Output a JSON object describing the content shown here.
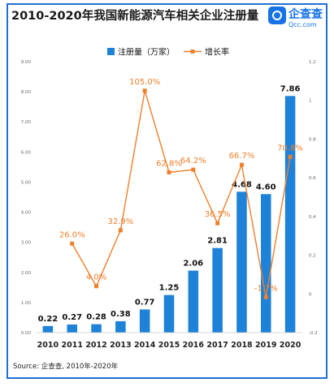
{
  "title": "2010-2020年我国新能源汽车相关企业注册量",
  "logo": {
    "name": "企查查",
    "url": "Qcc.com",
    "icon": "magnifier-icon"
  },
  "source": "Source: 企查查, 2010年-2020年",
  "chart_data": {
    "type": "bar+line",
    "categories": [
      "2010",
      "2011",
      "2012",
      "2013",
      "2014",
      "2015",
      "2016",
      "2017",
      "2018",
      "2019",
      "2020"
    ],
    "series": [
      {
        "name": "注册量（万家）",
        "type": "bar",
        "axis": "left",
        "color": "#1e82d8",
        "values": [
          0.22,
          0.27,
          0.28,
          0.38,
          0.77,
          1.25,
          2.06,
          2.81,
          4.68,
          4.6,
          7.86
        ],
        "labels": [
          "0.22",
          "0.27",
          "0.28",
          "0.38",
          "0.77",
          "1.25",
          "2.06",
          "2.81",
          "4.68",
          "4.60",
          "7.86"
        ]
      },
      {
        "name": "增长率",
        "type": "line",
        "axis": "right",
        "color": "#f07f2a",
        "values": [
          null,
          0.26,
          0.04,
          0.329,
          1.05,
          0.628,
          0.642,
          0.365,
          0.667,
          -0.017,
          0.708
        ],
        "labels": [
          "",
          "26.0%",
          "4.0%",
          "32.9%",
          "105.0%",
          "62.8%",
          "64.2%",
          "36.5%",
          "66.7%",
          "-1.7%",
          "70.8%"
        ]
      }
    ],
    "y_left": {
      "ylim": [
        0,
        9
      ],
      "ticks": [
        "0.00",
        "1.00",
        "2.00",
        "3.00",
        "4.00",
        "5.00",
        "6.00",
        "7.00",
        "8.00",
        "9.00"
      ]
    },
    "y_right": {
      "ylim": [
        -0.2,
        1.2
      ],
      "ticks": [
        "-0.2",
        "0",
        "0.2",
        "0.4",
        "0.6",
        "0.8",
        "1",
        "1.2"
      ]
    },
    "legend_position": "top-center",
    "grid": false
  }
}
